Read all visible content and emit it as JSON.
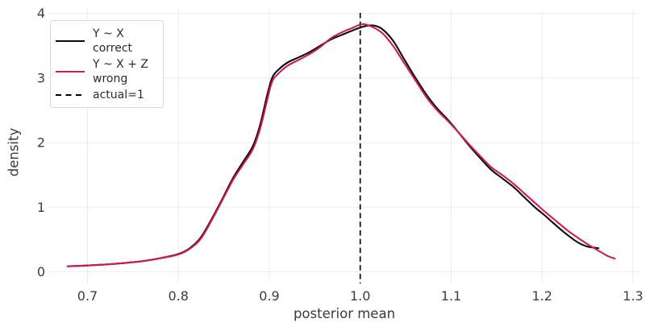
{
  "figure": {
    "background": "#ffffff",
    "axis": {
      "x_label": "posterior mean",
      "y_label": "density",
      "x_ticks": [
        0.7,
        0.8,
        0.9,
        1.0,
        1.1,
        1.2,
        1.3
      ],
      "x_tick_labels": [
        "0.7",
        "0.8",
        "0.9",
        "1.0",
        "1.1",
        "1.2",
        "1.3"
      ],
      "y_ticks": [
        0,
        1,
        2,
        3,
        4
      ],
      "y_tick_labels": [
        "0",
        "1",
        "2",
        "3",
        "4"
      ]
    },
    "colors": {
      "correct_line": "#0d0d0d",
      "wrong_line": "#d01b50",
      "vline": "#000000",
      "grid": "#ebebeb",
      "tick_text": "#3d3d3d",
      "legend_border": "#d9d9d9"
    }
  },
  "legend": {
    "items": [
      {
        "id": "correct",
        "line": "solid",
        "color": "#0d0d0d",
        "label_line1": "Y ~ X",
        "label_line2": "correct"
      },
      {
        "id": "wrong",
        "line": "solid",
        "color": "#d01b50",
        "label_line1": "Y ~ X + Z",
        "label_line2": "wrong"
      },
      {
        "id": "actual",
        "line": "dashed",
        "color": "#000000",
        "label_line1": "actual=1",
        "label_line2": ""
      }
    ]
  },
  "chart_data": {
    "type": "line",
    "title": "",
    "xlabel": "posterior mean",
    "ylabel": "density",
    "xlim": [
      0.656,
      1.309
    ],
    "ylim": [
      0,
      4
    ],
    "grid": true,
    "legend_position": "top-left",
    "vline": {
      "x": 1.0,
      "style": "dashed",
      "color": "#000000",
      "label": "actual=1"
    },
    "series": [
      {
        "id": "correct",
        "name": "Y ~ X correct",
        "color": "#0d0d0d",
        "style": "solid",
        "points": [
          [
            0.679,
            0.085
          ],
          [
            0.695,
            0.095
          ],
          [
            0.71,
            0.105
          ],
          [
            0.725,
            0.118
          ],
          [
            0.74,
            0.135
          ],
          [
            0.755,
            0.155
          ],
          [
            0.77,
            0.185
          ],
          [
            0.785,
            0.225
          ],
          [
            0.8,
            0.275
          ],
          [
            0.812,
            0.36
          ],
          [
            0.824,
            0.52
          ],
          [
            0.836,
            0.8
          ],
          [
            0.848,
            1.12
          ],
          [
            0.86,
            1.45
          ],
          [
            0.872,
            1.72
          ],
          [
            0.882,
            1.95
          ],
          [
            0.89,
            2.28
          ],
          [
            0.897,
            2.7
          ],
          [
            0.903,
            3.0
          ],
          [
            0.91,
            3.13
          ],
          [
            0.92,
            3.24
          ],
          [
            0.932,
            3.32
          ],
          [
            0.944,
            3.4
          ],
          [
            0.956,
            3.5
          ],
          [
            0.968,
            3.6
          ],
          [
            0.98,
            3.67
          ],
          [
            0.992,
            3.74
          ],
          [
            1.004,
            3.8
          ],
          [
            1.014,
            3.815
          ],
          [
            1.024,
            3.76
          ],
          [
            1.036,
            3.58
          ],
          [
            1.048,
            3.3
          ],
          [
            1.06,
            3.02
          ],
          [
            1.072,
            2.76
          ],
          [
            1.084,
            2.54
          ],
          [
            1.096,
            2.36
          ],
          [
            1.108,
            2.16
          ],
          [
            1.12,
            1.95
          ],
          [
            1.132,
            1.76
          ],
          [
            1.144,
            1.58
          ],
          [
            1.156,
            1.45
          ],
          [
            1.168,
            1.32
          ],
          [
            1.18,
            1.16
          ],
          [
            1.192,
            1.0
          ],
          [
            1.204,
            0.86
          ],
          [
            1.216,
            0.71
          ],
          [
            1.228,
            0.57
          ],
          [
            1.24,
            0.45
          ],
          [
            1.25,
            0.39
          ],
          [
            1.262,
            0.365
          ]
        ]
      },
      {
        "id": "wrong",
        "name": "Y ~ X + Z wrong",
        "color": "#d01b50",
        "style": "solid",
        "points": [
          [
            0.678,
            0.085
          ],
          [
            0.695,
            0.095
          ],
          [
            0.71,
            0.105
          ],
          [
            0.725,
            0.118
          ],
          [
            0.74,
            0.135
          ],
          [
            0.755,
            0.155
          ],
          [
            0.77,
            0.185
          ],
          [
            0.785,
            0.222
          ],
          [
            0.8,
            0.268
          ],
          [
            0.812,
            0.35
          ],
          [
            0.824,
            0.5
          ],
          [
            0.836,
            0.78
          ],
          [
            0.848,
            1.1
          ],
          [
            0.86,
            1.42
          ],
          [
            0.872,
            1.68
          ],
          [
            0.882,
            1.9
          ],
          [
            0.89,
            2.22
          ],
          [
            0.897,
            2.62
          ],
          [
            0.903,
            2.94
          ],
          [
            0.91,
            3.07
          ],
          [
            0.92,
            3.19
          ],
          [
            0.932,
            3.28
          ],
          [
            0.944,
            3.37
          ],
          [
            0.956,
            3.48
          ],
          [
            0.968,
            3.62
          ],
          [
            0.98,
            3.71
          ],
          [
            0.992,
            3.78
          ],
          [
            1.002,
            3.835
          ],
          [
            1.012,
            3.8
          ],
          [
            1.024,
            3.7
          ],
          [
            1.036,
            3.5
          ],
          [
            1.048,
            3.24
          ],
          [
            1.06,
            2.98
          ],
          [
            1.072,
            2.72
          ],
          [
            1.084,
            2.51
          ],
          [
            1.096,
            2.34
          ],
          [
            1.108,
            2.16
          ],
          [
            1.12,
            1.97
          ],
          [
            1.132,
            1.79
          ],
          [
            1.144,
            1.62
          ],
          [
            1.156,
            1.5
          ],
          [
            1.168,
            1.37
          ],
          [
            1.18,
            1.22
          ],
          [
            1.192,
            1.07
          ],
          [
            1.204,
            0.92
          ],
          [
            1.216,
            0.78
          ],
          [
            1.228,
            0.64
          ],
          [
            1.24,
            0.52
          ],
          [
            1.252,
            0.41
          ],
          [
            1.264,
            0.31
          ],
          [
            1.272,
            0.245
          ],
          [
            1.28,
            0.205
          ]
        ]
      }
    ]
  }
}
